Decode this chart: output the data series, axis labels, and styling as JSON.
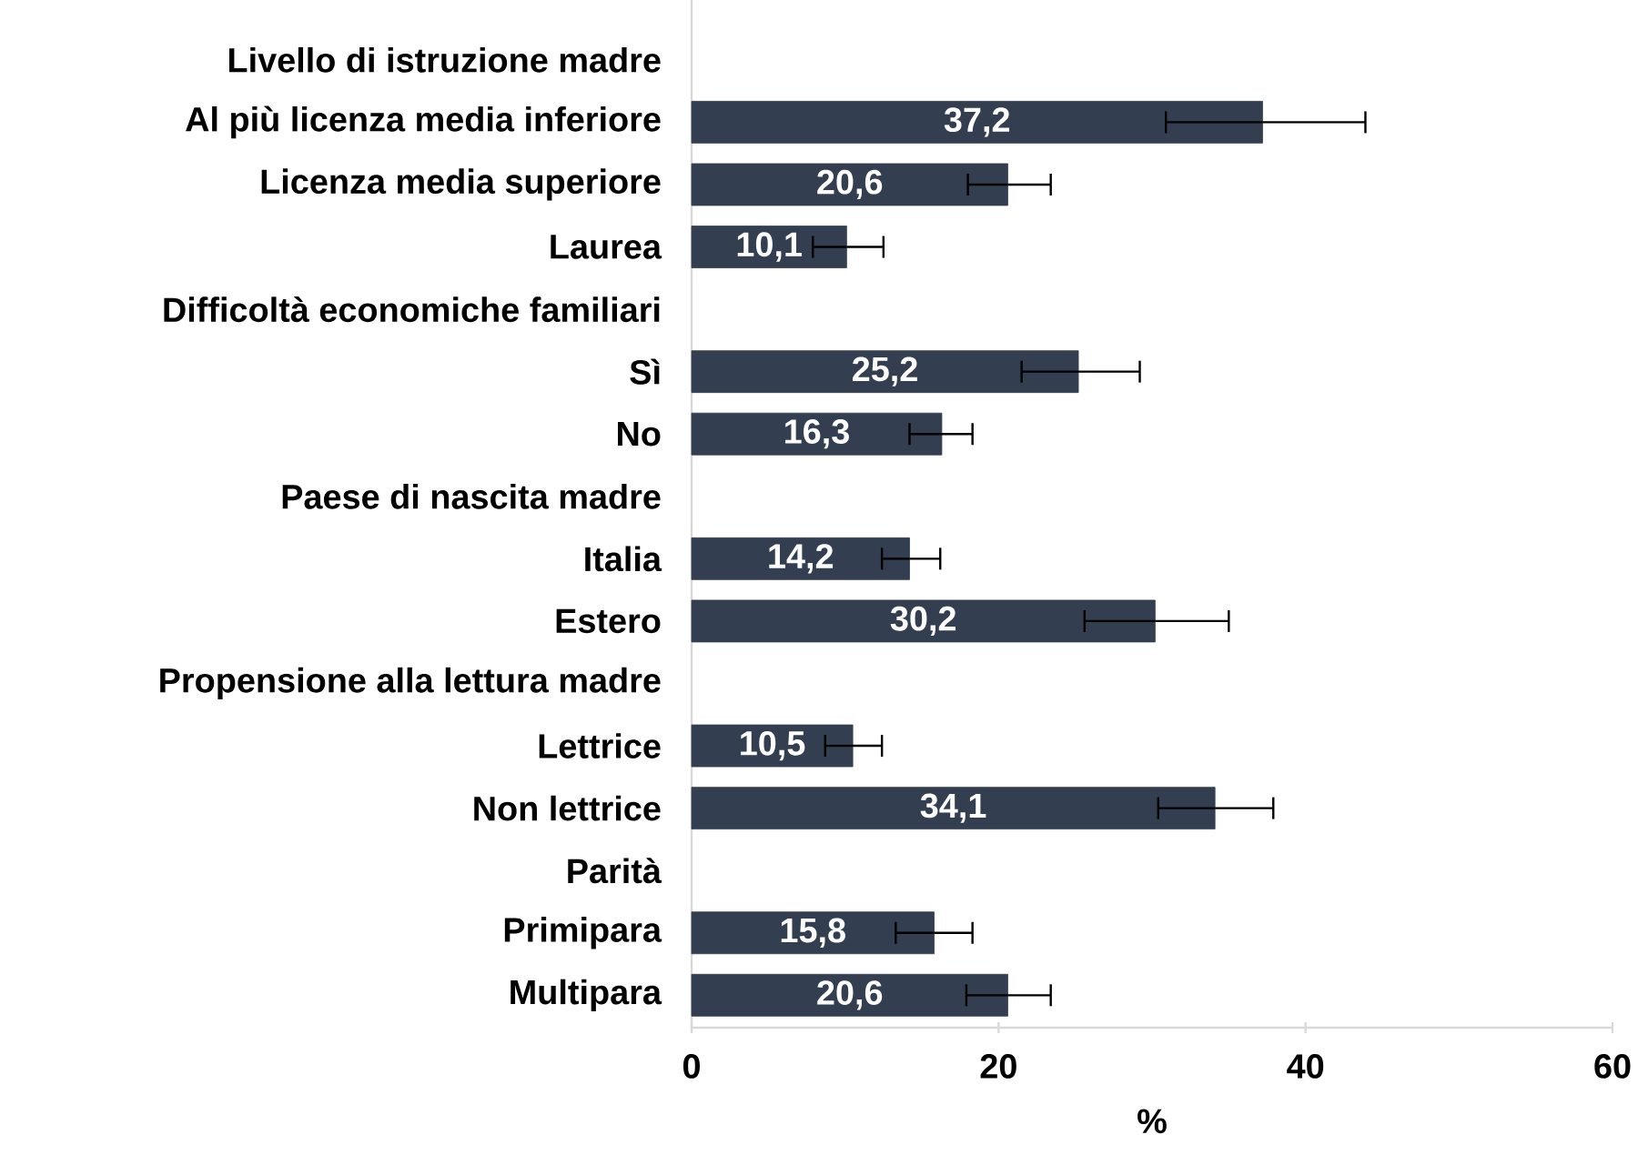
{
  "chart_data": {
    "type": "bar",
    "orientation": "horizontal",
    "xlabel": "%",
    "categories": [
      "Livello di istruzione madre",
      "Al più licenza media inferiore",
      "Licenza media superiore",
      "Laurea",
      "Difficoltà economiche familiari",
      "Sì",
      "No",
      "Paese di nascita madre",
      "Italia",
      "Estero",
      "Propensione alla lettura madre",
      "Lettrice",
      "Non lettrice",
      "Parità",
      "Primipara",
      "Multipara"
    ],
    "values": [
      null,
      37.2,
      20.6,
      10.1,
      null,
      25.2,
      16.3,
      null,
      14.2,
      30.2,
      null,
      10.5,
      34.1,
      null,
      15.8,
      20.6
    ],
    "value_labels": [
      null,
      "37,2",
      "20,6",
      "10,1",
      null,
      "25,2",
      "16,3",
      null,
      "14,2",
      "30,2",
      null,
      "10,5",
      "34,1",
      null,
      "15,8",
      "20,6"
    ],
    "errors": [
      null,
      [
        30.9,
        43.9
      ],
      [
        18.0,
        23.4
      ],
      [
        7.9,
        12.5
      ],
      null,
      [
        21.5,
        29.2
      ],
      [
        14.2,
        18.3
      ],
      null,
      [
        12.4,
        16.2
      ],
      [
        25.6,
        35.0
      ],
      null,
      [
        8.7,
        12.4
      ],
      [
        30.4,
        37.9
      ],
      null,
      [
        13.3,
        18.3
      ],
      [
        17.9,
        23.4
      ]
    ],
    "color": "#333f50",
    "xlim": [
      0,
      60
    ],
    "xticks": [
      0,
      20,
      40,
      60
    ]
  }
}
